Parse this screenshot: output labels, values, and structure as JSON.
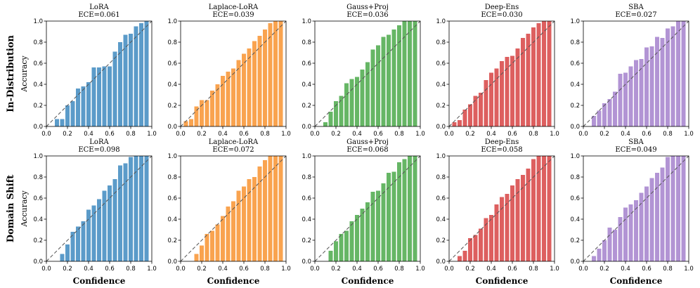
{
  "row_labels": [
    "In-Distribution",
    "Domain Shift"
  ],
  "ylabel": "Accuracy",
  "xlabel": "Confidence",
  "chart_data": [
    {
      "type": "bar",
      "row": "In-Distribution",
      "method": "LoRA",
      "title_line1": "LoRA",
      "title_line2": "ECE=0.061",
      "color": "#5b9bc9",
      "x": [
        0.1,
        0.15,
        0.2,
        0.25,
        0.3,
        0.35,
        0.4,
        0.45,
        0.5,
        0.55,
        0.6,
        0.65,
        0.7,
        0.75,
        0.8,
        0.85,
        0.9,
        0.95
      ],
      "values": [
        0.07,
        0.07,
        0.2,
        0.24,
        0.36,
        0.38,
        0.42,
        0.56,
        0.56,
        0.57,
        0.57,
        0.71,
        0.8,
        0.87,
        0.88,
        0.95,
        0.98,
        1.0
      ],
      "xlim": [
        0,
        1
      ],
      "ylim": [
        0,
        1
      ]
    },
    {
      "type": "bar",
      "row": "In-Distribution",
      "method": "Laplace-LoRA",
      "title_line1": "Laplace-LoRA",
      "title_line2": "ECE=0.039",
      "color": "#f9a34f",
      "x": [
        0.05,
        0.1,
        0.15,
        0.2,
        0.25,
        0.3,
        0.35,
        0.4,
        0.45,
        0.5,
        0.55,
        0.6,
        0.65,
        0.7,
        0.75,
        0.8,
        0.85,
        0.9,
        0.95
      ],
      "values": [
        0.05,
        0.07,
        0.19,
        0.25,
        0.25,
        0.34,
        0.4,
        0.48,
        0.52,
        0.55,
        0.63,
        0.69,
        0.74,
        0.81,
        0.86,
        0.92,
        0.98,
        1.0,
        1.0
      ],
      "xlim": [
        0,
        1
      ],
      "ylim": [
        0,
        1
      ]
    },
    {
      "type": "bar",
      "row": "In-Distribution",
      "method": "Gauss+Proj",
      "title_line1": "Gauss+Proj",
      "title_line2": "ECE=0.036",
      "color": "#66b665",
      "x": [
        0.1,
        0.15,
        0.2,
        0.25,
        0.3,
        0.35,
        0.4,
        0.45,
        0.5,
        0.55,
        0.6,
        0.65,
        0.7,
        0.75,
        0.8,
        0.85,
        0.9,
        0.95
      ],
      "values": [
        0.04,
        0.14,
        0.24,
        0.29,
        0.41,
        0.45,
        0.47,
        0.54,
        0.61,
        0.73,
        0.77,
        0.85,
        0.87,
        0.92,
        0.96,
        1.0,
        1.0,
        1.0
      ],
      "xlim": [
        0,
        1
      ],
      "ylim": [
        0,
        1
      ]
    },
    {
      "type": "bar",
      "row": "In-Distribution",
      "method": "Deep-Ens",
      "title_line1": "Deep-Ens",
      "title_line2": "ECE=0.030",
      "color": "#dd5f5f",
      "x": [
        0.05,
        0.1,
        0.15,
        0.2,
        0.25,
        0.3,
        0.35,
        0.4,
        0.45,
        0.5,
        0.55,
        0.6,
        0.65,
        0.7,
        0.75,
        0.8,
        0.85,
        0.9,
        0.95
      ],
      "values": [
        0.04,
        0.06,
        0.16,
        0.21,
        0.29,
        0.32,
        0.44,
        0.51,
        0.55,
        0.62,
        0.66,
        0.67,
        0.74,
        0.84,
        0.88,
        0.94,
        0.98,
        1.0,
        1.0
      ],
      "xlim": [
        0,
        1
      ],
      "ylim": [
        0,
        1
      ]
    },
    {
      "type": "bar",
      "row": "In-Distribution",
      "method": "SBA",
      "title_line1": "SBA",
      "title_line2": "ECE=0.027",
      "color": "#b294d4",
      "x": [
        0.1,
        0.15,
        0.2,
        0.25,
        0.3,
        0.35,
        0.4,
        0.45,
        0.5,
        0.55,
        0.6,
        0.65,
        0.7,
        0.75,
        0.8,
        0.85,
        0.9,
        0.95
      ],
      "values": [
        0.1,
        0.15,
        0.22,
        0.26,
        0.33,
        0.5,
        0.51,
        0.57,
        0.63,
        0.64,
        0.75,
        0.76,
        0.85,
        0.84,
        0.93,
        0.95,
        1.0,
        1.0
      ],
      "xlim": [
        0,
        1
      ],
      "ylim": [
        0,
        1
      ]
    },
    {
      "type": "bar",
      "row": "Domain Shift",
      "method": "LoRA",
      "title_line1": "LoRA",
      "title_line2": "ECE=0.098",
      "color": "#5b9bc9",
      "x": [
        0.15,
        0.2,
        0.25,
        0.3,
        0.35,
        0.4,
        0.45,
        0.5,
        0.55,
        0.6,
        0.65,
        0.7,
        0.75,
        0.8,
        0.85,
        0.9,
        0.95
      ],
      "values": [
        0.07,
        0.16,
        0.28,
        0.33,
        0.38,
        0.49,
        0.53,
        0.59,
        0.67,
        0.72,
        0.78,
        0.91,
        0.93,
        0.99,
        1.0,
        1.0,
        1.0
      ],
      "xlim": [
        0,
        1
      ],
      "ylim": [
        0,
        1
      ]
    },
    {
      "type": "bar",
      "row": "Domain Shift",
      "method": "Laplace-LoRA",
      "title_line1": "Laplace-LoRA",
      "title_line2": "ECE=0.072",
      "color": "#f9a34f",
      "x": [
        0.15,
        0.2,
        0.25,
        0.3,
        0.35,
        0.4,
        0.45,
        0.5,
        0.55,
        0.6,
        0.65,
        0.7,
        0.75,
        0.8,
        0.85,
        0.9,
        0.95
      ],
      "values": [
        0.07,
        0.15,
        0.26,
        0.29,
        0.35,
        0.43,
        0.52,
        0.57,
        0.67,
        0.71,
        0.78,
        0.8,
        0.9,
        0.96,
        1.0,
        1.0,
        1.0
      ],
      "xlim": [
        0,
        1
      ],
      "ylim": [
        0,
        1
      ]
    },
    {
      "type": "bar",
      "row": "Domain Shift",
      "method": "Gauss+Proj",
      "title_line1": "Gauss+Proj",
      "title_line2": "ECE=0.068",
      "color": "#66b665",
      "x": [
        0.15,
        0.2,
        0.25,
        0.3,
        0.35,
        0.4,
        0.45,
        0.5,
        0.55,
        0.6,
        0.65,
        0.7,
        0.75,
        0.8,
        0.85,
        0.9,
        0.95
      ],
      "values": [
        0.1,
        0.19,
        0.26,
        0.29,
        0.38,
        0.44,
        0.5,
        0.56,
        0.66,
        0.67,
        0.74,
        0.84,
        0.85,
        0.94,
        0.97,
        1.0,
        1.0
      ],
      "xlim": [
        0,
        1
      ],
      "ylim": [
        0,
        1
      ]
    },
    {
      "type": "bar",
      "row": "Domain Shift",
      "method": "Deep-Ens",
      "title_line1": "Deep-Ens",
      "title_line2": "ECE=0.058",
      "color": "#dd5f5f",
      "x": [
        0.1,
        0.15,
        0.2,
        0.25,
        0.3,
        0.35,
        0.4,
        0.45,
        0.5,
        0.55,
        0.6,
        0.65,
        0.7,
        0.75,
        0.8,
        0.85,
        0.9,
        0.95
      ],
      "values": [
        0.05,
        0.1,
        0.22,
        0.25,
        0.31,
        0.41,
        0.44,
        0.54,
        0.61,
        0.64,
        0.72,
        0.78,
        0.82,
        0.88,
        0.97,
        1.0,
        1.0,
        1.0
      ],
      "xlim": [
        0,
        1
      ],
      "ylim": [
        0,
        1
      ]
    },
    {
      "type": "bar",
      "row": "Domain Shift",
      "method": "SBA",
      "title_line1": "SBA",
      "title_line2": "ECE=0.049",
      "color": "#b294d4",
      "x": [
        0.1,
        0.15,
        0.2,
        0.25,
        0.3,
        0.35,
        0.4,
        0.45,
        0.5,
        0.55,
        0.6,
        0.65,
        0.7,
        0.75,
        0.8,
        0.85,
        0.9,
        0.95
      ],
      "values": [
        0.05,
        0.12,
        0.2,
        0.32,
        0.3,
        0.42,
        0.51,
        0.54,
        0.58,
        0.65,
        0.71,
        0.79,
        0.84,
        0.89,
        0.99,
        1.0,
        1.0,
        1.0
      ],
      "xlim": [
        0,
        1
      ],
      "ylim": [
        0,
        1
      ]
    }
  ],
  "tick_labels": [
    "0.0",
    "0.2",
    "0.4",
    "0.6",
    "0.8",
    "1.0"
  ]
}
